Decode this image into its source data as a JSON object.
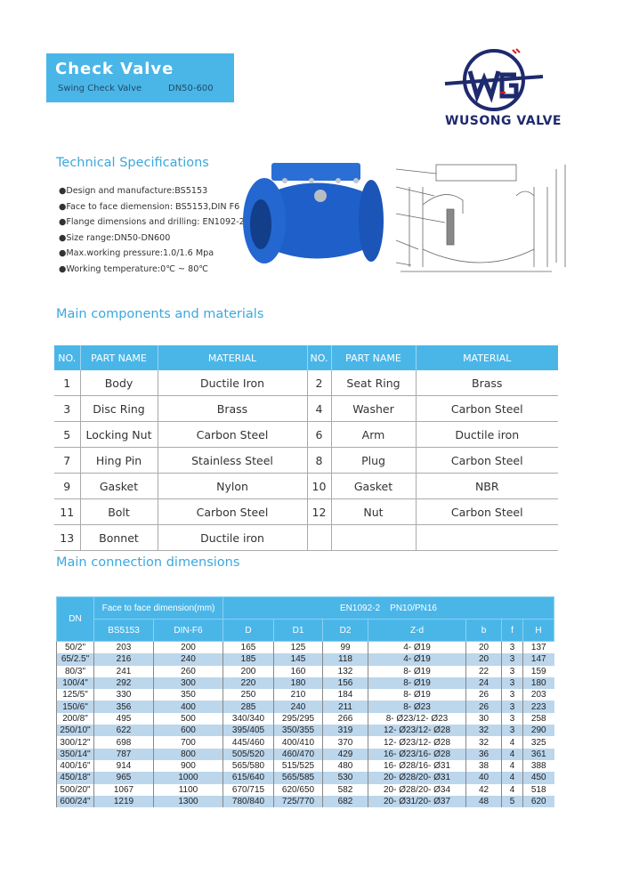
{
  "header": {
    "title": "Check Valve",
    "subtitle": "Swing Check Valve",
    "size": "DN50-600",
    "brand": "WUSONG VALVE",
    "logo_letters": "WG"
  },
  "colors": {
    "accent": "#4ab6e8",
    "brand": "#1e2a6e",
    "valve": "#1f5fc9",
    "row_stripe": "#bcd6ec"
  },
  "tech": {
    "heading": "Technical Specifications",
    "items": [
      "●Design and manufacture:BS5153",
      "●Face to face diemension: BS5153,DIN F6",
      "●Flange dimensions and drilling: EN1092-2",
      "●Size range:DN50-DN600",
      "●Max.working pressure:1.0/1.6 Mpa",
      "●Working temperature:0℃ ~ 80℃"
    ]
  },
  "components": {
    "heading": "Main components and materials",
    "headers": [
      "NO.",
      "PART NAME",
      "MATERIAL",
      "NO.",
      "PART NAME",
      "MATERIAL"
    ],
    "rows": [
      [
        "1",
        "Body",
        "Ductile Iron",
        "2",
        "Seat Ring",
        "Brass"
      ],
      [
        "3",
        "Disc Ring",
        "Brass",
        "4",
        "Washer",
        "Carbon Steel"
      ],
      [
        "5",
        "Locking Nut",
        "Carbon Steel",
        "6",
        "Arm",
        "Ductile iron"
      ],
      [
        "7",
        "Hing Pin",
        "Stainless Steel",
        "8",
        "Plug",
        "Carbon Steel"
      ],
      [
        "9",
        "Gasket",
        "Nylon",
        "10",
        "Gasket",
        "NBR"
      ],
      [
        "11",
        "Bolt",
        "Carbon Steel",
        "12",
        "Nut",
        "Carbon Steel"
      ],
      [
        "13",
        "Bonnet",
        "Ductile iron",
        "",
        "",
        ""
      ]
    ]
  },
  "dimensions": {
    "heading": "Main connection dimensions",
    "h_dn": "DN",
    "h_f2f": "Face to face dimension(mm)",
    "h_en": "EN1092-2    PN10/PN16",
    "subheaders": [
      "BS5153",
      "DIN-F6",
      "D",
      "D1",
      "D2",
      "Z-d",
      "b",
      "f",
      "H"
    ],
    "rows": [
      [
        "50/2\"",
        "203",
        "200",
        "165",
        "125",
        "99",
        "4- Ø19",
        "20",
        "3",
        "137"
      ],
      [
        "65/2.5\"",
        "216",
        "240",
        "185",
        "145",
        "118",
        "4- Ø19",
        "20",
        "3",
        "147"
      ],
      [
        "80/3\"",
        "241",
        "260",
        "200",
        "160",
        "132",
        "8- Ø19",
        "22",
        "3",
        "159"
      ],
      [
        "100/4\"",
        "292",
        "300",
        "220",
        "180",
        "156",
        "8- Ø19",
        "24",
        "3",
        "180"
      ],
      [
        "125/5\"",
        "330",
        "350",
        "250",
        "210",
        "184",
        "8- Ø19",
        "26",
        "3",
        "203"
      ],
      [
        "150/6\"",
        "356",
        "400",
        "285",
        "240",
        "211",
        "8- Ø23",
        "26",
        "3",
        "223"
      ],
      [
        "200/8\"",
        "495",
        "500",
        "340/340",
        "295/295",
        "266",
        "8- Ø23/12- Ø23",
        "30",
        "3",
        "258"
      ],
      [
        "250/10\"",
        "622",
        "600",
        "395/405",
        "350/355",
        "319",
        "12- Ø23/12- Ø28",
        "32",
        "3",
        "290"
      ],
      [
        "300/12\"",
        "698",
        "700",
        "445/460",
        "400/410",
        "370",
        "12- Ø23/12- Ø28",
        "32",
        "4",
        "325"
      ],
      [
        "350/14\"",
        "787",
        "800",
        "505/520",
        "460/470",
        "429",
        "16- Ø23/16- Ø28",
        "36",
        "4",
        "361"
      ],
      [
        "400/16\"",
        "914",
        "900",
        "565/580",
        "515/525",
        "480",
        "16- Ø28/16- Ø31",
        "38",
        "4",
        "388"
      ],
      [
        "450/18\"",
        "965",
        "1000",
        "615/640",
        "565/585",
        "530",
        "20- Ø28/20- Ø31",
        "40",
        "4",
        "450"
      ],
      [
        "500/20\"",
        "1067",
        "1100",
        "670/715",
        "620/650",
        "582",
        "20- Ø28/20- Ø34",
        "42",
        "4",
        "518"
      ],
      [
        "600/24\"",
        "1219",
        "1300",
        "780/840",
        "725/770",
        "682",
        "20- Ø31/20- Ø37",
        "48",
        "5",
        "620"
      ]
    ]
  }
}
